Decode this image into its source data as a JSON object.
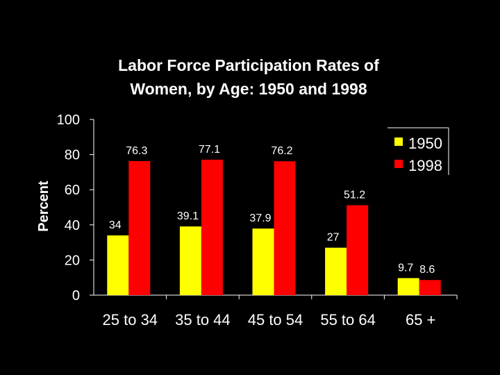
{
  "chart_data": {
    "type": "bar",
    "title": [
      "Labor Force Participation Rates of",
      "Women, by Age: 1950 and 1998"
    ],
    "ylabel": "Percent",
    "xlabel": "",
    "ylim": [
      0,
      100
    ],
    "yticks": [
      "0",
      "20",
      "40",
      "60",
      "80",
      "100"
    ],
    "categories": [
      "25 to 34",
      "35 to 44",
      "45 to 54",
      "55 to 64",
      "65 +"
    ],
    "series": [
      {
        "name": "1950",
        "color": "#ffff00",
        "values": [
          34,
          39.1,
          37.9,
          27,
          9.7
        ],
        "labels": [
          "34",
          "39.1",
          "37.9",
          "27",
          "9.7"
        ]
      },
      {
        "name": "1998",
        "color": "#ff0000",
        "values": [
          76.3,
          77.1,
          76.2,
          51.2,
          8.6
        ],
        "labels": [
          "76.3",
          "77.1",
          "76.2",
          "51.2",
          "8.6"
        ]
      }
    ],
    "grid": false,
    "legend_position": "top-right"
  }
}
